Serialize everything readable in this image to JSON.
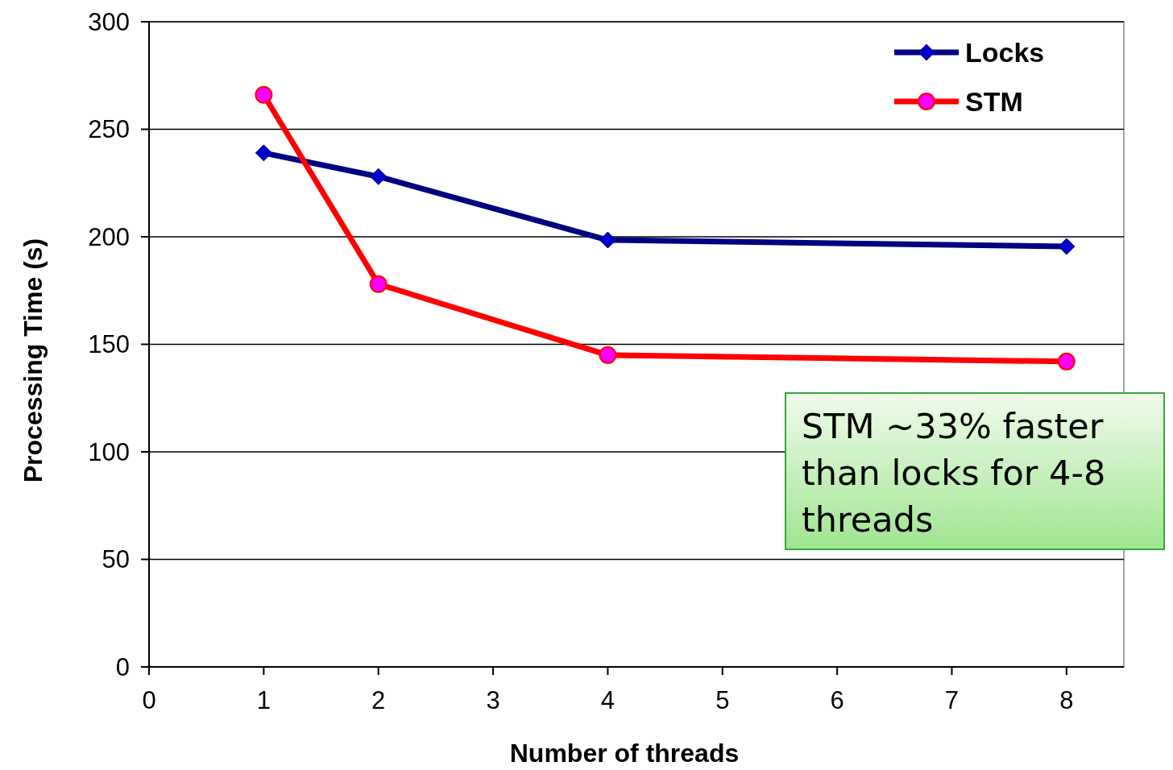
{
  "chart_data": {
    "type": "line",
    "xlabel": "Number of threads",
    "ylabel": "Processing Time (s)",
    "xlim": [
      0,
      8.5
    ],
    "xticks": [
      0,
      1,
      2,
      3,
      4,
      5,
      6,
      7,
      8
    ],
    "ylim": [
      0,
      300
    ],
    "yticks": [
      0,
      50,
      100,
      150,
      200,
      250,
      300
    ],
    "grid": "y",
    "legend": "top right",
    "annotations": [
      "STM ~33% faster than locks for 4-8 threads"
    ],
    "series": [
      {
        "name": "Locks",
        "color": "#000080",
        "marker": "diamond",
        "x": [
          1,
          2,
          4,
          8
        ],
        "values": [
          239,
          228,
          198.5,
          195.5
        ]
      },
      {
        "name": "STM",
        "color": "#ff0000",
        "marker": "circle",
        "x": [
          1,
          2,
          4,
          8
        ],
        "values": [
          266,
          178,
          145,
          142
        ]
      }
    ]
  }
}
